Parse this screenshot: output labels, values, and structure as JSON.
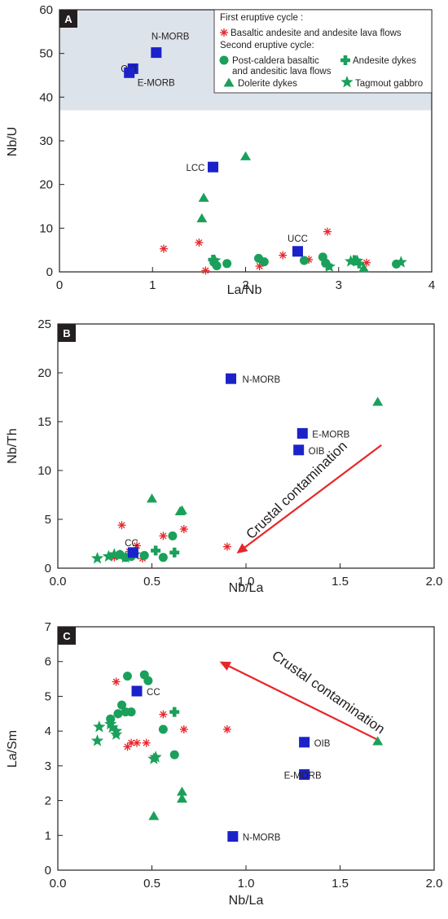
{
  "colors": {
    "red": "#e8262a",
    "green": "#1aa05a",
    "blue": "#1c22c9",
    "shade": "#dde3ea",
    "ink": "#231f20"
  },
  "legend": {
    "cycle1": "First eruptive cycle :",
    "basaltic": "Basaltic andesite and andesite lava flows",
    "cycle2": "Second eruptive cycle:",
    "post_caldera_1": "Post-caldera basaltic",
    "post_caldera_2": "and andesitic lava flows",
    "dolerite": "Dolerite dykes",
    "andesite_dykes": "Andesite dykes",
    "tagmout": "Tagmout gabbro"
  },
  "chart_data": [
    {
      "panel": "A",
      "type": "scatter",
      "xlabel": "La/Nb",
      "ylabel": "Nb/U",
      "xlim": [
        0,
        4
      ],
      "ylim": [
        0,
        60
      ],
      "xticks": [
        "0",
        "1",
        "2",
        "3",
        "4"
      ],
      "yticks": [
        "0",
        "10",
        "20",
        "30",
        "40",
        "50",
        "60"
      ],
      "shaded_band_y": [
        37,
        60
      ],
      "series": [
        {
          "name": "Basaltic andesite and andesite lava flows",
          "marker": "asterisk",
          "points": [
            [
              1.12,
              5.3
            ],
            [
              1.5,
              6.7
            ],
            [
              1.57,
              0.3
            ],
            [
              2.15,
              1.3
            ],
            [
              2.4,
              3.8
            ],
            [
              2.68,
              2.8
            ],
            [
              2.88,
              9.2
            ],
            [
              3.3,
              2.1
            ]
          ]
        },
        {
          "name": "Post-caldera basaltic and andesitic lava flows",
          "marker": "circle",
          "points": [
            [
              1.66,
              2.2
            ],
            [
              1.69,
              1.4
            ],
            [
              1.8,
              1.9
            ],
            [
              2.14,
              3.1
            ],
            [
              2.2,
              2.3
            ],
            [
              2.63,
              2.6
            ],
            [
              2.83,
              3.4
            ],
            [
              2.86,
              2.0
            ],
            [
              3.62,
              1.8
            ]
          ]
        },
        {
          "name": "Dolerite dykes",
          "marker": "triangle",
          "points": [
            [
              1.53,
              12.2
            ],
            [
              1.55,
              16.9
            ],
            [
              2.0,
              26.4
            ],
            [
              3.27,
              0.8
            ]
          ]
        },
        {
          "name": "Andesite dykes",
          "marker": "cross",
          "points": [
            [
              1.65,
              2.8
            ],
            [
              2.88,
              1.5
            ],
            [
              3.17,
              2.7
            ],
            [
              3.22,
              1.9
            ]
          ]
        },
        {
          "name": "Tagmout gabbro",
          "marker": "star",
          "points": [
            [
              1.67,
              2.6
            ],
            [
              2.9,
              1.2
            ],
            [
              3.13,
              2.4
            ],
            [
              3.2,
              2.5
            ],
            [
              3.67,
              2.2
            ]
          ]
        }
      ],
      "references": [
        {
          "label": "N-MORB",
          "x": 1.04,
          "y": 50.2
        },
        {
          "label": "OIB",
          "x": 0.79,
          "y": 46.5
        },
        {
          "label": "E-MORB",
          "x": 0.75,
          "y": 45.6
        },
        {
          "label": "LCC",
          "x": 1.65,
          "y": 24.0
        },
        {
          "label": "UCC",
          "x": 2.56,
          "y": 4.7
        }
      ]
    },
    {
      "panel": "B",
      "type": "scatter",
      "xlabel": "Nb/La",
      "ylabel": "Nb/Th",
      "xlim": [
        0,
        2
      ],
      "ylim": [
        0,
        25
      ],
      "xticks": [
        "0.0",
        "0.5",
        "1.0",
        "1.5",
        "2.0"
      ],
      "yticks": [
        "0",
        "5",
        "10",
        "15",
        "20",
        "25"
      ],
      "arrow_label": "Crustal contamination",
      "series": [
        {
          "name": "Basaltic andesite and andesite lava flows",
          "marker": "asterisk",
          "points": [
            [
              0.3,
              1.1
            ],
            [
              0.34,
              4.4
            ],
            [
              0.38,
              1.7
            ],
            [
              0.42,
              2.3
            ],
            [
              0.45,
              1.0
            ],
            [
              0.56,
              3.3
            ],
            [
              0.67,
              4.0
            ],
            [
              0.9,
              2.2
            ]
          ]
        },
        {
          "name": "Post-caldera basaltic and andesitic lava flows",
          "marker": "circle",
          "points": [
            [
              0.33,
              1.4
            ],
            [
              0.36,
              1.1
            ],
            [
              0.39,
              1.2
            ],
            [
              0.46,
              1.3
            ],
            [
              0.56,
              1.1
            ],
            [
              0.61,
              3.3
            ]
          ]
        },
        {
          "name": "Dolerite dykes",
          "marker": "triangle",
          "points": [
            [
              0.5,
              7.1
            ],
            [
              0.65,
              5.8
            ],
            [
              0.66,
              5.9
            ],
            [
              1.7,
              17.0
            ]
          ]
        },
        {
          "name": "Andesite dykes",
          "marker": "cross",
          "points": [
            [
              0.52,
              1.8
            ],
            [
              0.62,
              1.6
            ]
          ]
        },
        {
          "name": "Tagmout gabbro",
          "marker": "star",
          "points": [
            [
              0.21,
              1.0
            ],
            [
              0.27,
              1.2
            ],
            [
              0.3,
              1.4
            ],
            [
              0.33,
              1.3
            ],
            [
              0.36,
              1.1
            ],
            [
              0.41,
              1.4
            ]
          ]
        }
      ],
      "references": [
        {
          "label": "N-MORB",
          "x": 0.92,
          "y": 19.4
        },
        {
          "label": "E-MORB",
          "x": 1.3,
          "y": 13.8
        },
        {
          "label": "OIB",
          "x": 1.28,
          "y": 12.1
        },
        {
          "label": "CC",
          "x": 0.4,
          "y": 1.6
        }
      ]
    },
    {
      "panel": "C",
      "type": "scatter",
      "xlabel": "Nb/La",
      "ylabel": "La/Sm",
      "xlim": [
        0,
        2
      ],
      "ylim": [
        0,
        7
      ],
      "xticks": [
        "0.0",
        "0.5",
        "1.0",
        "1.5",
        "2.0"
      ],
      "yticks": [
        "0",
        "1",
        "2",
        "3",
        "4",
        "5",
        "6",
        "7"
      ],
      "arrow_label": "Crustal contamination",
      "series": [
        {
          "name": "Basaltic andesite and andesite lava flows",
          "marker": "asterisk",
          "points": [
            [
              0.31,
              5.42
            ],
            [
              0.32,
              4.48
            ],
            [
              0.37,
              3.55
            ],
            [
              0.39,
              3.66
            ],
            [
              0.42,
              3.66
            ],
            [
              0.47,
              3.66
            ],
            [
              0.56,
              4.48
            ],
            [
              0.67,
              4.05
            ],
            [
              0.9,
              4.05
            ]
          ]
        },
        {
          "name": "Post-caldera basaltic and andesitic lava flows",
          "marker": "circle",
          "points": [
            [
              0.28,
              4.35
            ],
            [
              0.32,
              4.5
            ],
            [
              0.34,
              4.75
            ],
            [
              0.36,
              4.55
            ],
            [
              0.37,
              5.58
            ],
            [
              0.39,
              4.55
            ],
            [
              0.46,
              5.62
            ],
            [
              0.48,
              5.45
            ],
            [
              0.56,
              4.05
            ],
            [
              0.62,
              3.32
            ]
          ]
        },
        {
          "name": "Dolerite dykes",
          "marker": "triangle",
          "points": [
            [
              0.51,
              1.55
            ],
            [
              0.66,
              2.25
            ],
            [
              0.66,
              2.05
            ],
            [
              1.7,
              3.7
            ]
          ]
        },
        {
          "name": "Andesite dykes",
          "marker": "cross",
          "points": [
            [
              0.62,
              4.55
            ]
          ]
        },
        {
          "name": "Tagmout gabbro",
          "marker": "star",
          "points": [
            [
              0.21,
              3.72
            ],
            [
              0.22,
              4.12
            ],
            [
              0.28,
              4.2
            ],
            [
              0.29,
              4.1
            ],
            [
              0.31,
              3.9
            ],
            [
              0.31,
              4.0
            ],
            [
              0.51,
              3.2
            ],
            [
              0.52,
              3.25
            ]
          ]
        }
      ],
      "references": [
        {
          "label": "CC",
          "x": 0.42,
          "y": 5.15
        },
        {
          "label": "OIB",
          "x": 1.31,
          "y": 3.68
        },
        {
          "label": "E-MORB",
          "x": 1.31,
          "y": 2.75
        },
        {
          "label": "N-MORB",
          "x": 0.93,
          "y": 0.97
        }
      ]
    }
  ]
}
